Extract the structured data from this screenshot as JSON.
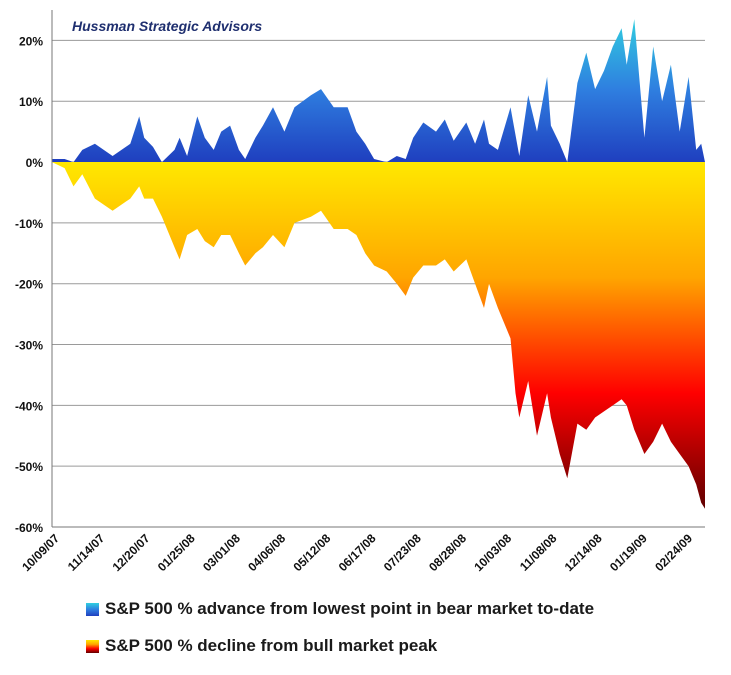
{
  "chart_data": {
    "type": "area",
    "title": "Hussman Strategic Advisors",
    "ylim": [
      -60,
      25
    ],
    "yticks": [
      20,
      10,
      0,
      -10,
      -20,
      -30,
      -40,
      -50,
      -60
    ],
    "ytick_labels": [
      "20%",
      "10%",
      "0%",
      "-10%",
      "-20%",
      "-30%",
      "-40%",
      "-50%",
      "-60%"
    ],
    "x_start": "2007-10-09",
    "x_end": "2009-03-09",
    "x_tick_labels": [
      "10/09/07",
      "11/14/07",
      "12/20/07",
      "01/25/08",
      "03/01/08",
      "04/06/08",
      "05/12/08",
      "06/17/08",
      "07/23/08",
      "08/28/08",
      "10/03/08",
      "11/08/08",
      "12/14/08",
      "01/19/09",
      "02/24/09"
    ],
    "grid": true,
    "legend_position": "bottom",
    "series": [
      {
        "name": "S&P 500 % advance from lowest point in bear market to-date",
        "colors": [
          "#1f3fbf",
          "#2f7fe0",
          "#30d0e0"
        ],
        "x": [
          "2007-10-09",
          "2007-10-19",
          "2007-10-26",
          "2007-11-02",
          "2007-11-12",
          "2007-11-26",
          "2007-12-10",
          "2007-12-17",
          "2007-12-21",
          "2007-12-28",
          "2008-01-04",
          "2008-01-14",
          "2008-01-18",
          "2008-01-24",
          "2008-02-01",
          "2008-02-07",
          "2008-02-14",
          "2008-02-20",
          "2008-02-27",
          "2008-03-05",
          "2008-03-10",
          "2008-03-18",
          "2008-03-24",
          "2008-04-01",
          "2008-04-10",
          "2008-04-18",
          "2008-05-01",
          "2008-05-09",
          "2008-05-19",
          "2008-05-30",
          "2008-06-06",
          "2008-06-13",
          "2008-06-20",
          "2008-06-30",
          "2008-07-08",
          "2008-07-15",
          "2008-07-21",
          "2008-07-29",
          "2008-08-08",
          "2008-08-15",
          "2008-08-22",
          "2008-09-01",
          "2008-09-08",
          "2008-09-15",
          "2008-09-19",
          "2008-09-26",
          "2008-10-06",
          "2008-10-13",
          "2008-10-20",
          "2008-10-27",
          "2008-11-04",
          "2008-11-07",
          "2008-11-14",
          "2008-11-20",
          "2008-11-28",
          "2008-12-05",
          "2008-12-12",
          "2008-12-19",
          "2008-12-26",
          "2009-01-02",
          "2009-01-06",
          "2009-01-12",
          "2009-01-20",
          "2009-01-27",
          "2009-02-03",
          "2009-02-10",
          "2009-02-17",
          "2009-02-24",
          "2009-03-02",
          "2009-03-06",
          "2009-03-09"
        ],
        "values": [
          0.5,
          0.5,
          0,
          2,
          3,
          1,
          3,
          7.5,
          4,
          2.5,
          0,
          2,
          4,
          1,
          7.5,
          4,
          2,
          5,
          6,
          2,
          0.5,
          4,
          6,
          9,
          5,
          9,
          11,
          12,
          9,
          9,
          5,
          3,
          0.5,
          0,
          1,
          0.5,
          4,
          6.5,
          5,
          7,
          3.5,
          6.5,
          3,
          7,
          3,
          2,
          9,
          1,
          11,
          5,
          14,
          6,
          3,
          0,
          13,
          18,
          12,
          15,
          19,
          22,
          16,
          23.5,
          4,
          19,
          10,
          16,
          5,
          14,
          2,
          3,
          0
        ]
      },
      {
        "name": "S&P 500 % decline from bull market peak",
        "colors": [
          "#ffe800",
          "#ffa500",
          "#ff0000",
          "#600000"
        ],
        "x": [
          "2007-10-09",
          "2007-10-19",
          "2007-10-26",
          "2007-11-02",
          "2007-11-12",
          "2007-11-26",
          "2007-12-10",
          "2007-12-17",
          "2007-12-21",
          "2007-12-28",
          "2008-01-04",
          "2008-01-14",
          "2008-01-18",
          "2008-01-24",
          "2008-02-01",
          "2008-02-07",
          "2008-02-14",
          "2008-02-20",
          "2008-02-27",
          "2008-03-05",
          "2008-03-10",
          "2008-03-18",
          "2008-03-24",
          "2008-04-01",
          "2008-04-10",
          "2008-04-18",
          "2008-05-01",
          "2008-05-09",
          "2008-05-19",
          "2008-05-30",
          "2008-06-06",
          "2008-06-13",
          "2008-06-20",
          "2008-06-30",
          "2008-07-08",
          "2008-07-15",
          "2008-07-21",
          "2008-07-29",
          "2008-08-08",
          "2008-08-15",
          "2008-08-22",
          "2008-09-01",
          "2008-09-08",
          "2008-09-15",
          "2008-09-19",
          "2008-09-26",
          "2008-10-06",
          "2008-10-10",
          "2008-10-13",
          "2008-10-20",
          "2008-10-27",
          "2008-11-04",
          "2008-11-07",
          "2008-11-14",
          "2008-11-20",
          "2008-11-28",
          "2008-12-05",
          "2008-12-12",
          "2008-12-19",
          "2008-12-26",
          "2009-01-02",
          "2009-01-06",
          "2009-01-12",
          "2009-01-20",
          "2009-01-27",
          "2009-02-03",
          "2009-02-10",
          "2009-02-17",
          "2009-02-24",
          "2009-03-02",
          "2009-03-06",
          "2009-03-09"
        ],
        "values": [
          0,
          -1,
          -4,
          -2,
          -6,
          -8,
          -6,
          -4,
          -6,
          -6,
          -9,
          -14,
          -16,
          -12,
          -11,
          -13,
          -14,
          -12,
          -12,
          -15,
          -17,
          -15,
          -14,
          -12,
          -14,
          -10,
          -9,
          -8,
          -11,
          -11,
          -12,
          -15,
          -17,
          -18,
          -20,
          -22,
          -19,
          -17,
          -17,
          -16,
          -18,
          -16,
          -20,
          -24,
          -20,
          -24,
          -29,
          -38,
          -42,
          -36,
          -45,
          -38,
          -42,
          -48,
          -52,
          -43,
          -44,
          -42,
          -41,
          -40,
          -39,
          -40,
          -44,
          -48,
          -46,
          -43,
          -46,
          -48,
          -50,
          -53,
          -56,
          -57
        ]
      }
    ]
  },
  "legend": [
    {
      "label": "S&P 500 % advance from lowest point in bear market to-date",
      "icon": "blue-gradient-swatch"
    },
    {
      "label": "S&P 500 % decline from bull market peak",
      "icon": "orange-red-gradient-swatch"
    }
  ]
}
